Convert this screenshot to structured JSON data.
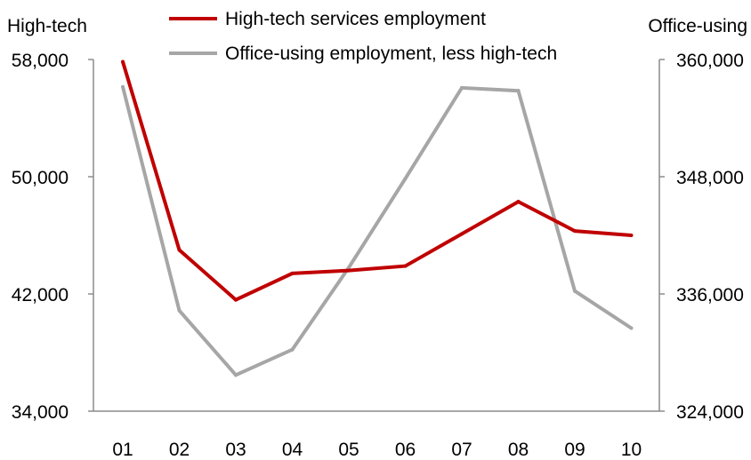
{
  "chart_data": {
    "type": "line",
    "categories": [
      "01",
      "02",
      "03",
      "04",
      "05",
      "06",
      "07",
      "08",
      "09",
      "10"
    ],
    "y_left": {
      "label": "High-tech",
      "ticks": [
        "58,000",
        "50,000",
        "42,000",
        "34,000"
      ],
      "tick_values": [
        58000,
        50000,
        42000,
        34000
      ],
      "range": [
        34000,
        58000
      ]
    },
    "y_right": {
      "label": "Office-using",
      "ticks": [
        "360,000",
        "348,000",
        "336,000",
        "324,000"
      ],
      "tick_values": [
        360000,
        348000,
        336000,
        324000
      ],
      "range": [
        324000,
        360000
      ]
    },
    "series": [
      {
        "name": "High-tech services employment",
        "axis": "left",
        "color": "#c00000",
        "values": [
          57850,
          45000,
          41600,
          43400,
          43600,
          43900,
          46100,
          48300,
          46300,
          46000
        ]
      },
      {
        "name": "Office-using employment, less high-tech",
        "axis": "right",
        "color": "#a6a6a6",
        "values": [
          357200,
          334300,
          327700,
          330300,
          338700,
          347800,
          357100,
          356800,
          336300,
          332500
        ]
      }
    ],
    "legend_position": "top-center",
    "grid": false
  }
}
